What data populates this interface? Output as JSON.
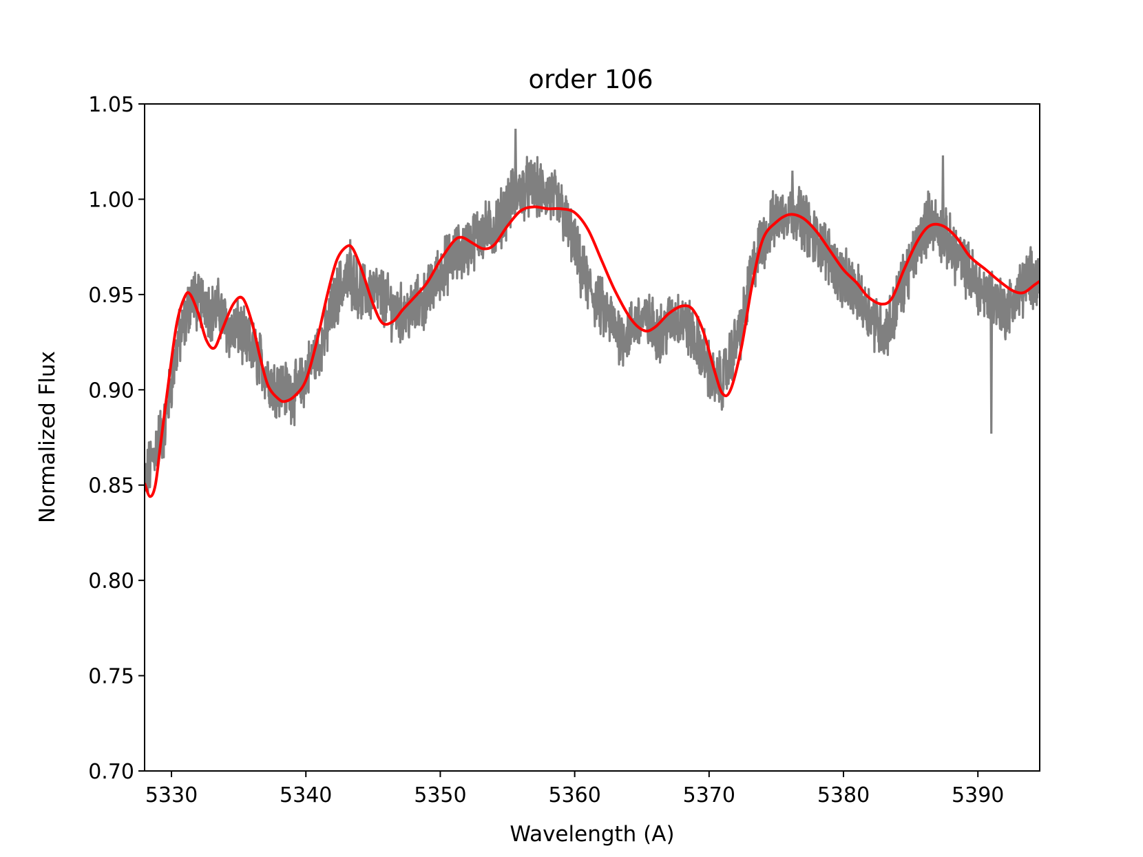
{
  "chart_data": {
    "type": "line",
    "title": "order 106",
    "xlabel": "Wavelength (A)",
    "ylabel": "Normalized Flux",
    "xlim": [
      5328,
      5394.6
    ],
    "ylim": [
      0.7,
      1.05
    ],
    "xticks": [
      5330,
      5340,
      5350,
      5360,
      5370,
      5380,
      5390
    ],
    "xtick_labels": [
      "5330",
      "5340",
      "5350",
      "5360",
      "5370",
      "5380",
      "5390"
    ],
    "yticks": [
      0.7,
      0.75,
      0.8,
      0.85,
      0.9,
      0.95,
      1.0,
      1.05
    ],
    "ytick_labels": [
      "0.70",
      "0.75",
      "0.80",
      "0.85",
      "0.90",
      "0.95",
      "1.00",
      "1.05"
    ],
    "grid": false,
    "legend": "none",
    "series": [
      {
        "color": "#808080",
        "style": "noisy observed spectrum",
        "x": [
          5328.0,
          5328.5,
          5329.0,
          5329.5,
          5330.0,
          5330.5,
          5331.0,
          5331.5,
          5332.0,
          5332.5,
          5333.0,
          5333.5,
          5334.0,
          5334.5,
          5335.0,
          5335.5,
          5336.0,
          5336.5,
          5337.0,
          5337.5,
          5338.0,
          5338.5,
          5339.0,
          5339.5,
          5340.0,
          5340.5,
          5341.0,
          5341.5,
          5342.0,
          5342.5,
          5343.0,
          5343.5,
          5344.0,
          5344.5,
          5345.0,
          5345.5,
          5346.0,
          5346.5,
          5347.0,
          5347.5,
          5348.0,
          5348.5,
          5349.0,
          5349.5,
          5350.0,
          5350.5,
          5351.0,
          5351.5,
          5352.0,
          5352.5,
          5353.0,
          5353.5,
          5354.0,
          5354.5,
          5355.0,
          5355.5,
          5356.0,
          5356.5,
          5357.0,
          5357.5,
          5358.0,
          5358.5,
          5359.0,
          5359.5,
          5360.0,
          5360.5,
          5361.0,
          5361.5,
          5362.0,
          5362.5,
          5363.0,
          5363.5,
          5364.0,
          5364.5,
          5365.0,
          5365.5,
          5366.0,
          5366.5,
          5367.0,
          5367.5,
          5368.0,
          5368.5,
          5369.0,
          5369.5,
          5370.0,
          5370.5,
          5371.0,
          5371.5,
          5372.0,
          5372.5,
          5373.0,
          5373.5,
          5374.0,
          5374.5,
          5375.0,
          5375.5,
          5376.0,
          5376.5,
          5377.0,
          5377.5,
          5378.0,
          5378.5,
          5379.0,
          5379.5,
          5380.0,
          5380.5,
          5381.0,
          5381.5,
          5382.0,
          5382.5,
          5383.0,
          5383.5,
          5384.0,
          5384.5,
          5385.0,
          5385.5,
          5386.0,
          5386.5,
          5387.0,
          5387.5,
          5388.0,
          5388.5,
          5389.0,
          5389.5,
          5390.0,
          5390.5,
          5391.0,
          5391.5,
          5392.0,
          5392.5,
          5393.0,
          5393.5,
          5394.0,
          5394.5
        ],
        "y": [
          0.85,
          0.862,
          0.874,
          0.88,
          0.905,
          0.925,
          0.935,
          0.95,
          0.945,
          0.948,
          0.94,
          0.943,
          0.935,
          0.93,
          0.932,
          0.925,
          0.922,
          0.916,
          0.91,
          0.903,
          0.902,
          0.9,
          0.898,
          0.9,
          0.908,
          0.915,
          0.922,
          0.93,
          0.943,
          0.953,
          0.958,
          0.958,
          0.952,
          0.95,
          0.952,
          0.95,
          0.946,
          0.942,
          0.94,
          0.94,
          0.942,
          0.945,
          0.948,
          0.955,
          0.962,
          0.966,
          0.97,
          0.972,
          0.975,
          0.979,
          0.983,
          0.983,
          0.985,
          0.99,
          0.997,
          1.002,
          1.004,
          1.006,
          1.006,
          1.004,
          1.003,
          1.0,
          0.995,
          0.985,
          0.975,
          0.962,
          0.955,
          0.948,
          0.943,
          0.938,
          0.933,
          0.928,
          0.93,
          0.935,
          0.937,
          0.935,
          0.932,
          0.93,
          0.935,
          0.938,
          0.937,
          0.932,
          0.925,
          0.92,
          0.91,
          0.903,
          0.905,
          0.915,
          0.925,
          0.935,
          0.955,
          0.97,
          0.978,
          0.985,
          0.99,
          0.993,
          0.995,
          0.994,
          0.99,
          0.983,
          0.978,
          0.975,
          0.97,
          0.963,
          0.958,
          0.955,
          0.95,
          0.945,
          0.94,
          0.935,
          0.93,
          0.935,
          0.948,
          0.958,
          0.965,
          0.975,
          0.985,
          0.99,
          0.985,
          0.98,
          0.975,
          0.97,
          0.965,
          0.96,
          0.955,
          0.95,
          0.95,
          0.945,
          0.942,
          0.945,
          0.95,
          0.955,
          0.96,
          0.958
        ],
        "spikes": [
          {
            "x": 5355.6,
            "y": 1.037
          },
          {
            "x": 5387.4,
            "y": 1.023
          },
          {
            "x": 5391.0,
            "y": 0.877
          },
          {
            "x": 5343.3,
            "y": 0.979
          },
          {
            "x": 5376.2,
            "y": 1.015
          }
        ]
      },
      {
        "color": "#ff0000",
        "style": "smooth model fit",
        "x": [
          5328.0,
          5328.4,
          5328.8,
          5329.2,
          5329.8,
          5330.4,
          5331.0,
          5331.4,
          5332.0,
          5332.6,
          5333.2,
          5333.8,
          5334.6,
          5335.3,
          5336.0,
          5336.6,
          5337.2,
          5338.0,
          5338.5,
          5339.2,
          5340.0,
          5340.8,
          5341.6,
          5342.3,
          5343.0,
          5343.5,
          5344.2,
          5345.0,
          5345.7,
          5346.5,
          5347.2,
          5348.0,
          5349.0,
          5350.0,
          5351.0,
          5351.6,
          5352.4,
          5353.2,
          5354.0,
          5355.0,
          5356.0,
          5357.0,
          5358.0,
          5359.0,
          5360.0,
          5361.0,
          5362.0,
          5363.0,
          5364.2,
          5365.2,
          5366.0,
          5367.0,
          5368.0,
          5368.8,
          5369.6,
          5370.4,
          5371.0,
          5371.6,
          5372.4,
          5373.2,
          5374.0,
          5375.0,
          5376.0,
          5377.0,
          5378.0,
          5379.0,
          5380.0,
          5381.0,
          5381.8,
          5382.8,
          5383.6,
          5384.5,
          5385.5,
          5386.4,
          5387.4,
          5388.4,
          5389.4,
          5390.6,
          5391.6,
          5392.6,
          5393.4,
          5394.2,
          5394.6
        ],
        "y": [
          0.851,
          0.844,
          0.85,
          0.872,
          0.905,
          0.935,
          0.949,
          0.95,
          0.94,
          0.926,
          0.922,
          0.932,
          0.945,
          0.948,
          0.935,
          0.917,
          0.902,
          0.895,
          0.894,
          0.897,
          0.905,
          0.925,
          0.95,
          0.968,
          0.975,
          0.974,
          0.962,
          0.945,
          0.935,
          0.936,
          0.942,
          0.948,
          0.956,
          0.968,
          0.978,
          0.98,
          0.977,
          0.974,
          0.976,
          0.986,
          0.994,
          0.996,
          0.995,
          0.995,
          0.993,
          0.984,
          0.968,
          0.952,
          0.937,
          0.931,
          0.933,
          0.94,
          0.944,
          0.942,
          0.93,
          0.91,
          0.898,
          0.9,
          0.922,
          0.955,
          0.979,
          0.988,
          0.992,
          0.99,
          0.983,
          0.973,
          0.963,
          0.956,
          0.949,
          0.945,
          0.948,
          0.963,
          0.978,
          0.986,
          0.986,
          0.98,
          0.97,
          0.963,
          0.957,
          0.952,
          0.951,
          0.955,
          0.957
        ]
      }
    ]
  }
}
